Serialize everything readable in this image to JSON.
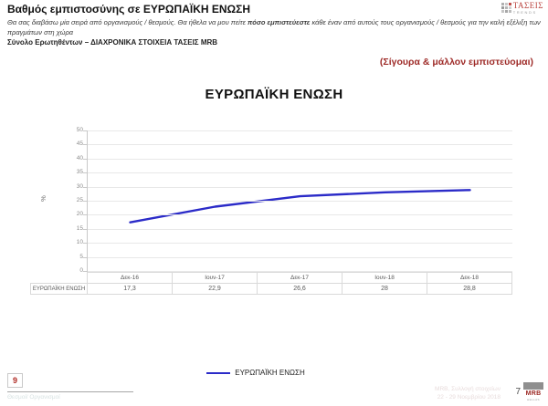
{
  "colors": {
    "accent_red": "#9e2b28",
    "line_blue": "#2b2bc8",
    "gridline": "#e8e8e8",
    "table_border": "#d9d9d9"
  },
  "header": {
    "title": "Βαθμός εμπιστοσύνης σε ΕΥΡΩΠΑΪΚΗ ΕΝΩΣΗ",
    "question_pre": "Θα σας διαβάσω μία σειρά από οργανισμούς / θεσμούς. Θα ήθελα να μου πείτε ",
    "question_bold": "πόσο εμπιστεύεστε",
    "question_post": " κάθε έναν από αυτούς τους οργανισμούς / θεσμούς για την καλή εξέλιξη των πραγμάτων στη χώρα",
    "sample_line": "Σύνολο Ερωτηθέντων  – ΔΙΑΧΡΟΝΙΚΑ ΣΤΟΙΧΕΙΑ ΤΑΣΕΙΣ MRB",
    "red_note": "(Σίγουρα & μάλλον εμπιστεύομαι)"
  },
  "logo_trends": {
    "name": "ΤΑΣΕΙΣ",
    "sub": "TRENDS"
  },
  "chart_data": {
    "type": "line",
    "title": "ΕΥΡΩΠΑΪΚΗ ΕΝΩΣΗ",
    "categories": [
      "Δεκ-16",
      "Ιουν-17",
      "Δεκ-17",
      "Ιουν-18",
      "Δεκ-18"
    ],
    "series": [
      {
        "name": "ΕΥΡΩΠΑΪΚΗ ΕΝΩΣΗ",
        "values": [
          17.3,
          22.9,
          26.6,
          28,
          28.8
        ],
        "value_labels": [
          "17,3",
          "22,9",
          "26,6",
          "28",
          "28,8"
        ],
        "color": "#2b2bc8"
      }
    ],
    "xlabel": "",
    "ylabel": "%",
    "ylim": [
      0,
      50
    ],
    "ytick_step": 5,
    "grid": true,
    "legend_position": "bottom"
  },
  "legend": {
    "label": "ΕΥΡΩΠΑΪΚΗ ΕΝΩΣΗ"
  },
  "footer": {
    "left_page": "9",
    "left_caption": "Θεσμοί/ Οργανισμοί",
    "right_line1": "MRB, Συλλογή στοιχείων",
    "right_line2": "22 - 29 Νοεμβρίου 2018",
    "page": "7",
    "mrb_name": "MRB",
    "mrb_sub": "HELLAS"
  }
}
